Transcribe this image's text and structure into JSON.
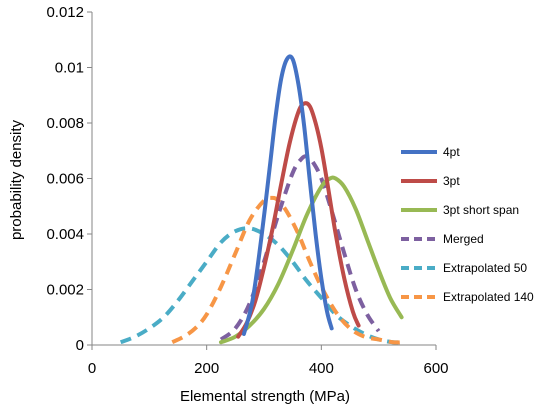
{
  "chart_data": {
    "type": "line",
    "title": "",
    "xlabel": "Elemental strength (MPa)",
    "ylabel": "probability density",
    "xlim": [
      0,
      600
    ],
    "ylim": [
      0,
      0.012
    ],
    "x_ticks": [
      "0",
      "200",
      "400",
      "600"
    ],
    "y_ticks": [
      "0",
      "0.002",
      "0.004",
      "0.006",
      "0.008",
      "0.01",
      "0.012"
    ],
    "grid": false,
    "legend_position": "right",
    "series": [
      {
        "name": "4pt",
        "color": "#4472c4",
        "dash": "solid",
        "x": [
          265,
          280,
          295,
          310,
          320,
          330,
          340,
          350,
          360,
          370,
          380,
          390,
          400,
          410,
          418
        ],
        "y": [
          0.0004,
          0.0016,
          0.0038,
          0.0064,
          0.0082,
          0.0096,
          0.0103,
          0.0103,
          0.0094,
          0.0079,
          0.0059,
          0.004,
          0.0024,
          0.0012,
          0.0006
        ]
      },
      {
        "name": "3pt",
        "color": "#be4b48",
        "dash": "solid",
        "x": [
          255,
          270,
          285,
          300,
          315,
          330,
          345,
          360,
          370,
          380,
          390,
          400,
          410,
          425,
          440,
          455,
          465
        ],
        "y": [
          0.0003,
          0.0008,
          0.0016,
          0.0028,
          0.0042,
          0.0058,
          0.0073,
          0.0084,
          0.0087,
          0.0086,
          0.008,
          0.0071,
          0.0059,
          0.004,
          0.0024,
          0.0012,
          0.0007
        ]
      },
      {
        "name": "3pt short span",
        "color": "#98b954",
        "dash": "solid",
        "x": [
          225,
          250,
          275,
          300,
          325,
          350,
          375,
          400,
          415,
          425,
          440,
          460,
          480,
          500,
          520,
          540
        ],
        "y": [
          0.0001,
          0.0003,
          0.0007,
          0.0013,
          0.0022,
          0.0034,
          0.0047,
          0.0057,
          0.006,
          0.006,
          0.0057,
          0.0049,
          0.0038,
          0.0027,
          0.0017,
          0.001
        ]
      },
      {
        "name": "Merged",
        "color": "#7d60a0",
        "dash": "dash",
        "x": [
          225,
          250,
          275,
          300,
          325,
          350,
          365,
          375,
          385,
          400,
          420,
          440,
          460,
          480,
          500
        ],
        "y": [
          0.0002,
          0.0006,
          0.0015,
          0.003,
          0.0047,
          0.0062,
          0.0067,
          0.0068,
          0.0066,
          0.006,
          0.0047,
          0.0033,
          0.002,
          0.0011,
          0.0005
        ]
      },
      {
        "name": "Extrapolated 50",
        "color": "#4aacc6",
        "dash": "dash",
        "x": [
          50,
          75,
          100,
          125,
          150,
          175,
          200,
          225,
          250,
          275,
          300,
          325,
          350,
          375,
          400,
          425,
          450,
          475,
          500,
          525,
          540
        ],
        "y": [
          0.0001,
          0.0003,
          0.0006,
          0.001,
          0.0016,
          0.0023,
          0.003,
          0.0037,
          0.0041,
          0.0042,
          0.004,
          0.0036,
          0.003,
          0.0023,
          0.0017,
          0.0011,
          0.0007,
          0.0004,
          0.0002,
          0.0001,
          0.0001
        ]
      },
      {
        "name": "Extrapolated 140",
        "color": "#f79646",
        "dash": "dash",
        "x": [
          140,
          160,
          180,
          200,
          225,
          250,
          275,
          300,
          315,
          325,
          340,
          360,
          380,
          400,
          425,
          450,
          475,
          500,
          525,
          540
        ],
        "y": [
          0.0001,
          0.0003,
          0.0006,
          0.0011,
          0.0021,
          0.0033,
          0.0045,
          0.0052,
          0.0053,
          0.0052,
          0.0048,
          0.004,
          0.003,
          0.0021,
          0.0012,
          0.0006,
          0.0003,
          0.0002,
          0.0001,
          0.0001
        ]
      }
    ]
  }
}
